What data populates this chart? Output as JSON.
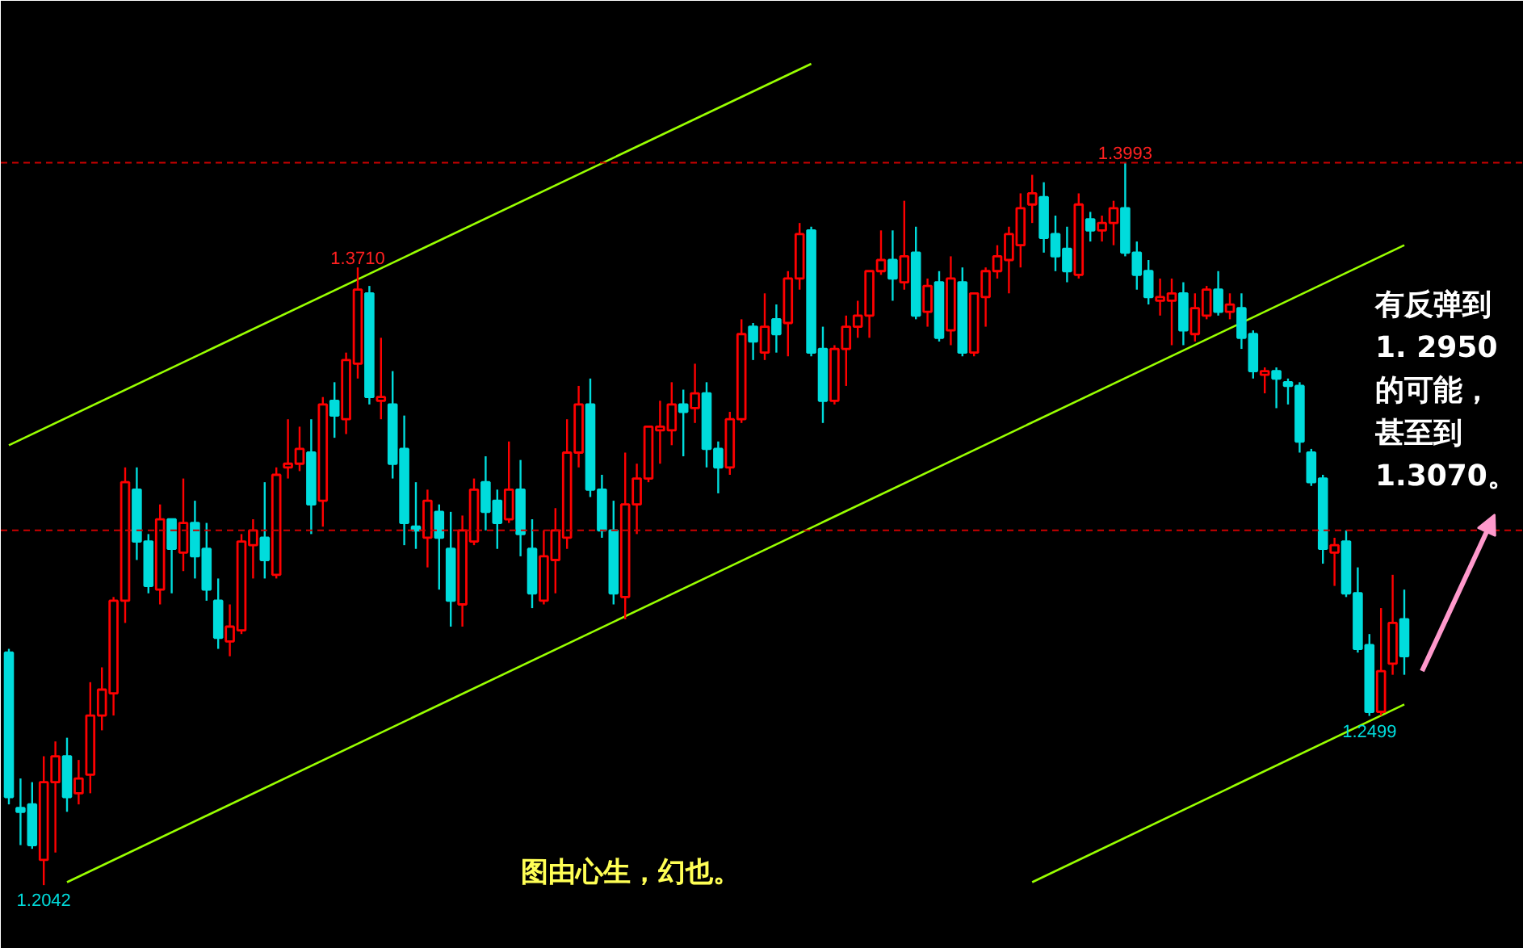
{
  "chart_data": {
    "type": "candlestick",
    "categories": [
      null,
      null,
      null,
      null,
      null,
      null,
      null,
      null,
      null,
      null,
      null,
      null,
      null,
      null,
      null,
      null,
      null,
      null,
      null,
      null,
      null,
      null,
      null,
      null,
      null,
      null,
      null,
      null,
      null,
      null,
      null,
      null,
      null,
      null,
      null,
      null,
      null,
      null,
      null,
      null,
      null,
      null,
      null,
      null,
      null,
      null,
      null,
      null,
      null,
      null,
      null,
      null,
      null,
      null,
      null,
      null,
      null,
      null,
      null,
      null,
      null,
      null,
      null,
      null,
      null,
      null,
      null,
      null,
      null,
      null,
      null,
      null,
      null,
      null,
      null,
      null,
      null,
      null,
      null,
      null,
      null,
      null,
      null,
      null,
      null,
      null,
      null,
      null,
      null,
      null,
      null,
      null,
      null,
      null,
      null,
      null,
      null,
      null,
      null,
      null,
      null,
      null,
      null,
      null,
      null,
      null,
      null,
      null,
      null,
      null,
      null,
      null,
      null,
      null,
      null,
      null,
      null,
      null,
      null,
      null,
      null
    ],
    "ohlc": [
      [
        1.267,
        1.268,
        1.226,
        1.228
      ],
      [
        1.225,
        1.233,
        1.215,
        1.224
      ],
      [
        1.226,
        1.232,
        1.214,
        1.215
      ],
      [
        1.211,
        1.239,
        1.2042,
        1.232
      ],
      [
        1.232,
        1.243,
        1.213,
        1.239
      ],
      [
        1.239,
        1.244,
        1.224,
        1.228
      ],
      [
        1.229,
        1.238,
        1.226,
        1.233
      ],
      [
        1.234,
        1.259,
        1.229,
        1.25
      ],
      [
        1.25,
        1.263,
        1.246,
        1.257
      ],
      [
        1.256,
        1.282,
        1.25,
        1.281
      ],
      [
        1.281,
        1.317,
        1.275,
        1.313
      ],
      [
        1.311,
        1.317,
        1.292,
        1.297
      ],
      [
        1.297,
        1.299,
        1.283,
        1.285
      ],
      [
        1.284,
        1.307,
        1.28,
        1.303
      ],
      [
        1.303,
        1.303,
        1.283,
        1.295
      ],
      [
        1.294,
        1.314,
        1.289,
        1.302
      ],
      [
        1.302,
        1.308,
        1.287,
        1.293
      ],
      [
        1.295,
        1.302,
        1.281,
        1.284
      ],
      [
        1.281,
        1.287,
        1.268,
        1.271
      ],
      [
        1.27,
        1.28,
        1.266,
        1.274
      ],
      [
        1.273,
        1.299,
        1.272,
        1.297
      ],
      [
        1.296,
        1.303,
        1.287,
        1.3
      ],
      [
        1.298,
        1.313,
        1.287,
        1.292
      ],
      [
        1.288,
        1.317,
        1.287,
        1.315
      ],
      [
        1.317,
        1.33,
        1.314,
        1.318
      ],
      [
        1.318,
        1.328,
        1.316,
        1.322
      ],
      [
        1.321,
        1.33,
        1.299,
        1.307
      ],
      [
        1.308,
        1.336,
        1.301,
        1.334
      ],
      [
        1.335,
        1.34,
        1.325,
        1.331
      ],
      [
        1.33,
        1.348,
        1.326,
        1.346
      ],
      [
        1.345,
        1.371,
        1.341,
        1.365
      ],
      [
        1.364,
        1.366,
        1.334,
        1.336
      ],
      [
        1.335,
        1.352,
        1.33,
        1.336
      ],
      [
        1.334,
        1.343,
        1.314,
        1.318
      ],
      [
        1.322,
        1.331,
        1.296,
        1.302
      ],
      [
        1.301,
        1.313,
        1.295,
        1.3
      ],
      [
        1.298,
        1.311,
        1.29,
        1.308
      ],
      [
        1.305,
        1.307,
        1.284,
        1.298
      ],
      [
        1.295,
        1.305,
        1.274,
        1.281
      ],
      [
        1.28,
        1.304,
        1.274,
        1.3
      ],
      [
        1.297,
        1.314,
        1.296,
        1.311
      ],
      [
        1.313,
        1.32,
        1.3,
        1.305
      ],
      [
        1.308,
        1.311,
        1.295,
        1.302
      ],
      [
        1.303,
        1.324,
        1.302,
        1.311
      ],
      [
        1.311,
        1.319,
        1.293,
        1.299
      ],
      [
        1.295,
        1.303,
        1.279,
        1.283
      ],
      [
        1.281,
        1.3,
        1.28,
        1.293
      ],
      [
        1.292,
        1.306,
        1.283,
        1.3
      ],
      [
        1.298,
        1.33,
        1.295,
        1.321
      ],
      [
        1.321,
        1.339,
        1.317,
        1.334
      ],
      [
        1.334,
        1.341,
        1.309,
        1.311
      ],
      [
        1.311,
        1.315,
        1.298,
        1.3
      ],
      [
        1.3,
        1.308,
        1.28,
        1.283
      ],
      [
        1.282,
        1.321,
        1.276,
        1.307
      ],
      [
        1.307,
        1.318,
        1.299,
        1.314
      ],
      [
        1.314,
        1.328,
        1.313,
        1.328
      ],
      [
        1.327,
        1.335,
        1.318,
        1.328
      ],
      [
        1.327,
        1.34,
        1.323,
        1.334
      ],
      [
        1.334,
        1.338,
        1.32,
        1.332
      ],
      [
        1.333,
        1.345,
        1.329,
        1.337
      ],
      [
        1.337,
        1.34,
        1.317,
        1.322
      ],
      [
        1.322,
        1.324,
        1.31,
        1.317
      ],
      [
        1.317,
        1.332,
        1.315,
        1.33
      ],
      [
        1.33,
        1.357,
        1.329,
        1.353
      ],
      [
        1.355,
        1.356,
        1.346,
        1.351
      ],
      [
        1.348,
        1.364,
        1.346,
        1.355
      ],
      [
        1.357,
        1.361,
        1.348,
        1.353
      ],
      [
        1.356,
        1.37,
        1.347,
        1.368
      ],
      [
        1.368,
        1.383,
        1.365,
        1.38
      ],
      [
        1.381,
        1.382,
        1.347,
        1.348
      ],
      [
        1.349,
        1.355,
        1.329,
        1.335
      ],
      [
        1.335,
        1.35,
        1.334,
        1.349
      ],
      [
        1.349,
        1.358,
        1.339,
        1.355
      ],
      [
        1.355,
        1.362,
        1.352,
        1.358
      ],
      [
        1.358,
        1.37,
        1.352,
        1.37
      ],
      [
        1.37,
        1.381,
        1.369,
        1.373
      ],
      [
        1.373,
        1.381,
        1.362,
        1.368
      ],
      [
        1.367,
        1.389,
        1.365,
        1.374
      ],
      [
        1.375,
        1.382,
        1.357,
        1.358
      ],
      [
        1.359,
        1.368,
        1.355,
        1.366
      ],
      [
        1.367,
        1.37,
        1.351,
        1.352
      ],
      [
        1.354,
        1.374,
        1.35,
        1.368
      ],
      [
        1.367,
        1.371,
        1.347,
        1.348
      ],
      [
        1.348,
        1.364,
        1.347,
        1.364
      ],
      [
        1.363,
        1.371,
        1.355,
        1.37
      ],
      [
        1.37,
        1.377,
        1.368,
        1.374
      ],
      [
        1.373,
        1.382,
        1.364,
        1.38
      ],
      [
        1.377,
        1.391,
        1.371,
        1.387
      ],
      [
        1.388,
        1.396,
        1.383,
        1.391
      ],
      [
        1.39,
        1.394,
        1.375,
        1.379
      ],
      [
        1.38,
        1.385,
        1.37,
        1.374
      ],
      [
        1.376,
        1.382,
        1.367,
        1.37
      ],
      [
        1.369,
        1.391,
        1.368,
        1.388
      ],
      [
        1.384,
        1.386,
        1.378,
        1.381
      ],
      [
        1.381,
        1.385,
        1.378,
        1.383
      ],
      [
        1.383,
        1.389,
        1.377,
        1.387
      ],
      [
        1.387,
        1.3993,
        1.374,
        1.375
      ],
      [
        1.375,
        1.378,
        1.365,
        1.369
      ],
      [
        1.37,
        1.373,
        1.361,
        1.363
      ],
      [
        1.362,
        1.368,
        1.358,
        1.363
      ],
      [
        1.362,
        1.368,
        1.35,
        1.364
      ],
      [
        1.364,
        1.367,
        1.35,
        1.354
      ],
      [
        1.353,
        1.364,
        1.351,
        1.36
      ],
      [
        1.358,
        1.366,
        1.357,
        1.365
      ],
      [
        1.365,
        1.37,
        1.358,
        1.359
      ],
      [
        1.359,
        1.364,
        1.357,
        1.361
      ],
      [
        1.36,
        1.364,
        1.349,
        1.352
      ],
      [
        1.353,
        1.354,
        1.341,
        1.343
      ],
      [
        1.342,
        1.344,
        1.337,
        1.343
      ],
      [
        1.343,
        1.344,
        1.333,
        1.341
      ],
      [
        1.34,
        1.341,
        1.334,
        1.339
      ],
      [
        1.339,
        1.34,
        1.321,
        1.324
      ],
      [
        1.321,
        1.322,
        1.312,
        1.313
      ],
      [
        1.314,
        1.315,
        1.291,
        1.295
      ],
      [
        1.294,
        1.298,
        1.285,
        1.296
      ],
      [
        1.297,
        1.3,
        1.282,
        1.283
      ],
      [
        1.283,
        1.29,
        1.267,
        1.268
      ],
      [
        1.269,
        1.272,
        1.2499,
        1.251
      ],
      [
        1.251,
        1.279,
        1.25,
        1.262
      ],
      [
        1.264,
        1.288,
        1.261,
        1.275
      ],
      [
        1.276,
        1.284,
        1.261,
        1.266
      ]
    ],
    "colors": [
      "#00dcdc",
      "#00dcdc",
      "#00dcdc",
      "#ff0000",
      "#ff0000",
      "#00dcdc",
      "#ff0000",
      "#ff0000",
      "#ff0000",
      "#ff0000",
      "#ff0000",
      "#00dcdc",
      "#00dcdc",
      "#ff0000",
      "#00dcdc",
      "#ff0000",
      "#00dcdc",
      "#00dcdc",
      "#00dcdc",
      "#ff0000",
      "#ff0000",
      "#ff0000",
      "#00dcdc",
      "#ff0000",
      "#ff0000",
      "#ff0000",
      "#00dcdc",
      "#ff0000",
      "#00dcdc",
      "#ff0000",
      "#ff0000",
      "#00dcdc",
      "#ff0000",
      "#00dcdc",
      "#00dcdc",
      "#00dcdc",
      "#ff0000",
      "#00dcdc",
      "#00dcdc",
      "#ff0000",
      "#ff0000",
      "#00dcdc",
      "#00dcdc",
      "#ff0000",
      "#00dcdc",
      "#00dcdc",
      "#ff0000",
      "#ff0000",
      "#ff0000",
      "#ff0000",
      "#00dcdc",
      "#00dcdc",
      "#00dcdc",
      "#ff0000",
      "#ff0000",
      "#ff0000",
      "#ff0000",
      "#ff0000",
      "#00dcdc",
      "#ff0000",
      "#00dcdc",
      "#00dcdc",
      "#ff0000",
      "#ff0000",
      "#00dcdc",
      "#ff0000",
      "#00dcdc",
      "#ff0000",
      "#ff0000",
      "#00dcdc",
      "#00dcdc",
      "#ff0000",
      "#ff0000",
      "#ff0000",
      "#ff0000",
      "#ff0000",
      "#00dcdc",
      "#ff0000",
      "#00dcdc",
      "#ff0000",
      "#00dcdc",
      "#ff0000",
      "#00dcdc",
      "#ff0000",
      "#ff0000",
      "#ff0000",
      "#ff0000",
      "#ff0000",
      "#ff0000",
      "#00dcdc",
      "#00dcdc",
      "#00dcdc",
      "#ff0000",
      "#00dcdc",
      "#ff0000",
      "#ff0000",
      "#00dcdc",
      "#00dcdc",
      "#00dcdc",
      "#ff0000",
      "#ff0000",
      "#00dcdc",
      "#ff0000",
      "#ff0000",
      "#00dcdc",
      "#ff0000",
      "#00dcdc",
      "#00dcdc",
      "#ff0000",
      "#00dcdc",
      "#00dcdc",
      "#00dcdc",
      "#00dcdc",
      "#00dcdc",
      "#ff0000",
      "#00dcdc",
      "#00dcdc",
      "#00dcdc",
      "#ff0000",
      "#ff0000",
      "#00dcdc"
    ],
    "series": [
      {
        "type": "line",
        "color": "#99ff00",
        "values": [
          1.323,
          null,
          null,
          null,
          null,
          null,
          null,
          null,
          null,
          null,
          null,
          null,
          null,
          null,
          null,
          null,
          null,
          null,
          null,
          null,
          null,
          null,
          null,
          null,
          null,
          null,
          null,
          null,
          null,
          null,
          null,
          null,
          null,
          null,
          null,
          null,
          null,
          null,
          null,
          null,
          null,
          null,
          null,
          null,
          null,
          null,
          null,
          null,
          null,
          null,
          null,
          null,
          null,
          null,
          null,
          null,
          null,
          null,
          null,
          null,
          null,
          null,
          null,
          null,
          null,
          null,
          null,
          null,
          null,
          1.426,
          null,
          null,
          null,
          null,
          null,
          null,
          null,
          null,
          null,
          null,
          null,
          null,
          null,
          null,
          null,
          null,
          null,
          null,
          null,
          null,
          null,
          null,
          null,
          null,
          null,
          null,
          null,
          null,
          null,
          null,
          null,
          null,
          null,
          null,
          null,
          null,
          null,
          null,
          null,
          null,
          null,
          null,
          null,
          null,
          null,
          null,
          null,
          null,
          null,
          null,
          null
        ]
      },
      {
        "type": "line",
        "color": "#99ff00",
        "values": [
          null,
          null,
          null,
          null,
          null,
          1.205,
          null,
          null,
          null,
          null,
          null,
          null,
          null,
          null,
          null,
          null,
          null,
          null,
          null,
          null,
          null,
          null,
          null,
          null,
          null,
          null,
          null,
          null,
          null,
          null,
          null,
          null,
          null,
          null,
          null,
          null,
          null,
          null,
          null,
          null,
          null,
          null,
          null,
          null,
          null,
          null,
          null,
          null,
          null,
          null,
          null,
          null,
          null,
          null,
          null,
          null,
          null,
          null,
          null,
          null,
          null,
          null,
          null,
          null,
          null,
          null,
          null,
          null,
          null,
          null,
          null,
          null,
          null,
          null,
          null,
          null,
          null,
          null,
          null,
          null,
          null,
          null,
          null,
          null,
          null,
          null,
          null,
          null,
          null,
          null,
          null,
          null,
          null,
          null,
          null,
          null,
          null,
          null,
          null,
          null,
          null,
          null,
          null,
          null,
          null,
          null,
          null,
          null,
          null,
          null,
          null,
          null,
          null,
          null,
          null,
          null,
          null,
          null,
          null,
          null,
          1.377
        ]
      },
      {
        "type": "line",
        "color": "#99ff00",
        "values": [
          null,
          null,
          null,
          null,
          null,
          null,
          null,
          null,
          null,
          null,
          null,
          null,
          null,
          null,
          null,
          null,
          null,
          null,
          null,
          null,
          null,
          null,
          null,
          null,
          null,
          null,
          null,
          null,
          null,
          null,
          null,
          null,
          null,
          null,
          null,
          null,
          null,
          null,
          null,
          null,
          null,
          null,
          null,
          null,
          null,
          null,
          null,
          null,
          null,
          null,
          null,
          null,
          null,
          null,
          null,
          null,
          null,
          null,
          null,
          null,
          null,
          null,
          null,
          null,
          null,
          null,
          null,
          null,
          null,
          null,
          null,
          null,
          null,
          null,
          null,
          null,
          null,
          null,
          null,
          null,
          null,
          null,
          null,
          null,
          null,
          null,
          null,
          null,
          1.205,
          null,
          null,
          null,
          null,
          null,
          null,
          null,
          null,
          null,
          null,
          null,
          null,
          null,
          null,
          null,
          null,
          null,
          null,
          null,
          null,
          null,
          null,
          null,
          null,
          null,
          null,
          null,
          null,
          null,
          null,
          null,
          1.253
        ]
      }
    ],
    "ylim": [
      1.187,
      1.443
    ],
    "ref_lines": [
      {
        "axis": "y",
        "value": 1.3993,
        "color": "#cc0000",
        "line_style": "dashed"
      },
      {
        "axis": "y",
        "value": 1.3,
        "color": "#cc0000",
        "line_style": "dashed"
      }
    ],
    "annotations": [
      "有反弹到",
      "1. 2950",
      "的可能，",
      "甚至到",
      "1.3070。",
      "图由心生，幻也。",
      {
        "text": "1.3993",
        "y": 1.3993
      },
      {
        "text": "1.3710",
        "y": 1.371
      },
      {
        "text": "1.2499",
        "y": 1.2499
      },
      {
        "text": "1.2042",
        "y": 1.2042
      }
    ]
  }
}
